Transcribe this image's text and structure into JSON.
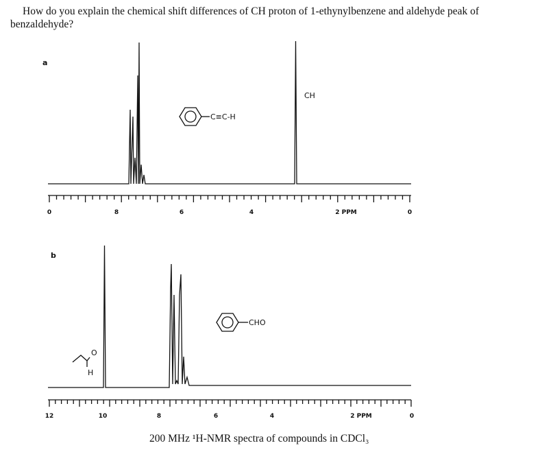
{
  "question": [
    "How do you explain the chemical shift differences of CH proton of 1-ethynylbenzene and aldehyde peak of",
    "benzaldehyde?"
  ],
  "spectrum_a": {
    "label": "a",
    "peak_label": "CH",
    "substituent": "C≡C-H",
    "axis_labels": [
      "0",
      "8",
      "6",
      "4",
      "2 PPM",
      "0"
    ]
  },
  "spectrum_b": {
    "label": "b",
    "substituent": "CHO",
    "aldehyde_atoms": [
      "O",
      "H"
    ],
    "axis_labels": [
      "12",
      "10",
      "8",
      "6",
      "4",
      "2 PPM",
      "0"
    ]
  },
  "caption": "200 MHz ¹H-NMR spectra of compounds in CDCl₃"
}
